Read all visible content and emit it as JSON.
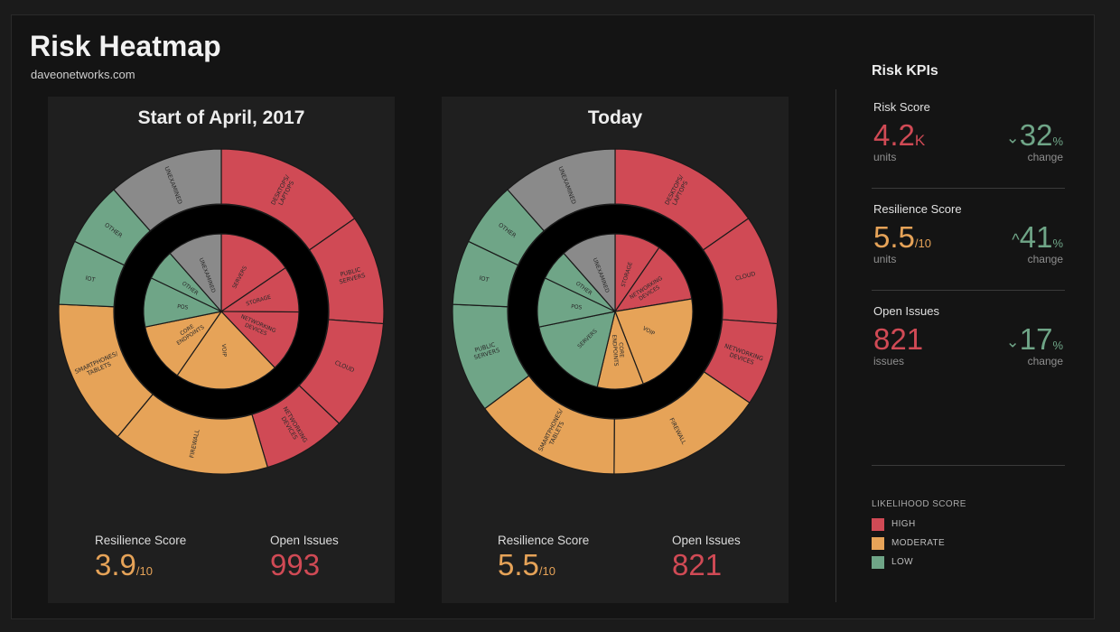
{
  "header": {
    "title": "Risk Heatmap",
    "subtitle": "daveonetworks.com"
  },
  "colors": {
    "HIGH": "#d04a55",
    "MODERATE": "#e6a358",
    "LOW": "#6fa587",
    "UNEXAMINED": "#8a8a8a"
  },
  "chart_data": [
    {
      "type": "pie",
      "title": "Start of April, 2017",
      "outer_ring": [
        {
          "label": "DESKTOPS/ LAPTOPS",
          "value": 15.3,
          "level": "HIGH"
        },
        {
          "label": "PUBLIC SERVERS",
          "value": 10.9,
          "level": "HIGH"
        },
        {
          "label": "CLOUD",
          "value": 10.9,
          "level": "HIGH"
        },
        {
          "label": "NETWORKING DEVICES",
          "value": 8.3,
          "level": "HIGH"
        },
        {
          "label": "FIREWALL",
          "value": 15.6,
          "level": "MODERATE"
        },
        {
          "label": "SMARTPHONES/ TABLETS",
          "value": 14.7,
          "level": "MODERATE"
        },
        {
          "label": "IOT",
          "value": 6.4,
          "level": "LOW"
        },
        {
          "label": "OTHER",
          "value": 6.4,
          "level": "LOW"
        },
        {
          "label": "UNEXAMINED",
          "value": 11.5,
          "level": "UNEXAMINED"
        }
      ],
      "inner_ring": [
        {
          "label": "SERVERS",
          "value": 15.5,
          "level": "HIGH"
        },
        {
          "label": "STORAGE",
          "value": 9.6,
          "level": "HIGH"
        },
        {
          "label": "NETWORKING DEVICES",
          "value": 12.8,
          "level": "HIGH"
        },
        {
          "label": "VOIP",
          "value": 21.7,
          "level": "MODERATE"
        },
        {
          "label": "CORE ENDPOINTS",
          "value": 12.2,
          "level": "MODERATE"
        },
        {
          "label": "POS",
          "value": 10.3,
          "level": "LOW"
        },
        {
          "label": "OTHER",
          "value": 6.4,
          "level": "LOW"
        },
        {
          "label": "UNEXAMINED",
          "value": 11.5,
          "level": "UNEXAMINED"
        }
      ],
      "resilience_label": "Resilience Score",
      "resilience_value": "3.9",
      "resilience_den": "/10",
      "issues_label": "Open Issues",
      "issues_value": "993"
    },
    {
      "type": "pie",
      "title": "Today",
      "outer_ring": [
        {
          "label": "DESKTOPS/ LAPTOPS",
          "value": 15.3,
          "level": "HIGH"
        },
        {
          "label": "CLOUD",
          "value": 10.9,
          "level": "HIGH"
        },
        {
          "label": "NETWORKING DEVICES",
          "value": 8.3,
          "level": "HIGH"
        },
        {
          "label": "FIREWALL",
          "value": 15.6,
          "level": "MODERATE"
        },
        {
          "label": "SMARTPHONES/ TABLETS",
          "value": 14.7,
          "level": "MODERATE"
        },
        {
          "label": "PUBLIC SERVERS",
          "value": 10.9,
          "level": "LOW"
        },
        {
          "label": "IOT",
          "value": 6.4,
          "level": "LOW"
        },
        {
          "label": "OTHER",
          "value": 6.4,
          "level": "LOW"
        },
        {
          "label": "UNEXAMINED",
          "value": 11.5,
          "level": "UNEXAMINED"
        }
      ],
      "inner_ring": [
        {
          "label": "STORAGE",
          "value": 9.6,
          "level": "HIGH"
        },
        {
          "label": "NETWORKING DEVICES",
          "value": 12.8,
          "level": "HIGH"
        },
        {
          "label": "VOIP",
          "value": 21.7,
          "level": "MODERATE"
        },
        {
          "label": "CORE ENDPOINTS",
          "value": 9.6,
          "level": "MODERATE"
        },
        {
          "label": "SERVERS",
          "value": 18.1,
          "level": "LOW"
        },
        {
          "label": "POS",
          "value": 10.3,
          "level": "LOW"
        },
        {
          "label": "OTHER",
          "value": 6.4,
          "level": "LOW"
        },
        {
          "label": "UNEXAMINED",
          "value": 11.5,
          "level": "UNEXAMINED"
        }
      ],
      "resilience_label": "Resilience Score",
      "resilience_value": "5.5",
      "resilience_den": "/10",
      "issues_label": "Open Issues",
      "issues_value": "821"
    }
  ],
  "kpis": {
    "heading": "Risk KPIs",
    "items": [
      {
        "name": "Risk Score",
        "value": "4.2",
        "unit": "K",
        "unit_label": "units",
        "arrow": "⌄",
        "change": "32",
        "pct": "%",
        "change_label": "change",
        "color": "#d04a55"
      },
      {
        "name": "Resilience Score",
        "value": "5.5",
        "unit": "/10",
        "unit_label": "units",
        "arrow": "^",
        "change": "41",
        "pct": "%",
        "change_label": "change",
        "color": "#e6a358"
      },
      {
        "name": "Open Issues",
        "value": "821",
        "unit": "",
        "unit_label": "issues",
        "arrow": "⌄",
        "change": "17",
        "pct": "%",
        "change_label": "change",
        "color": "#d04a55"
      }
    ]
  },
  "legend": {
    "title": "LIKELIHOOD SCORE",
    "items": [
      {
        "label": "HIGH",
        "color": "#d04a55"
      },
      {
        "label": "MODERATE",
        "color": "#e6a358"
      },
      {
        "label": "LOW",
        "color": "#6fa587"
      }
    ]
  }
}
